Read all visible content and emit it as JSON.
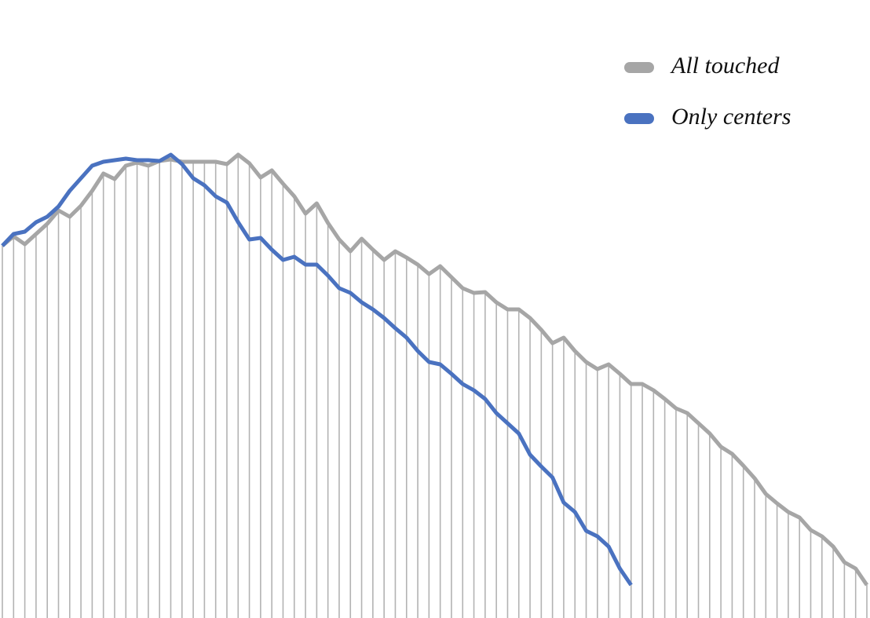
{
  "chart_data": {
    "type": "line",
    "x": [
      0,
      1,
      2,
      3,
      4,
      5,
      6,
      7,
      8,
      9,
      10,
      11,
      12,
      13,
      14,
      15,
      16,
      17,
      18,
      19,
      20,
      21,
      22,
      23,
      24,
      25,
      26,
      27,
      28,
      29,
      30,
      31,
      32,
      33,
      34,
      35,
      36,
      37,
      38,
      39,
      40,
      41,
      42,
      43,
      44,
      45,
      46,
      47,
      48,
      49,
      50,
      51,
      52,
      53,
      54,
      55,
      56,
      57,
      58,
      59,
      60,
      61,
      62,
      63,
      64,
      65,
      66,
      67,
      68,
      69,
      70,
      71,
      72,
      73,
      74,
      75,
      76,
      77
    ],
    "xlim": [
      0,
      77
    ],
    "ylim": [
      0,
      787
    ],
    "legend": "upper right",
    "drop_lines": true,
    "drop_line_color": "#b3b3b3",
    "series": [
      {
        "name": "All touched",
        "color": "#a6a6a6",
        "values": [
          474,
          486,
          476,
          489,
          502,
          519,
          511,
          525,
          544,
          566,
          559,
          576,
          580,
          576,
          582,
          584,
          581,
          581,
          581,
          581,
          578,
          590,
          579,
          561,
          570,
          553,
          537,
          515,
          528,
          503,
          482,
          467,
          483,
          469,
          456,
          467,
          459,
          450,
          438,
          448,
          434,
          420,
          414,
          415,
          402,
          393,
          393,
          382,
          367,
          350,
          357,
          340,
          326,
          317,
          323,
          311,
          298,
          298,
          290,
          279,
          267,
          261,
          248,
          235,
          218,
          209,
          194,
          178,
          158,
          146,
          135,
          128,
          112,
          104,
          91,
          71,
          63,
          42
        ]
      },
      {
        "name": "Only centers",
        "color": "#4a72c0",
        "values": [
          474,
          489,
          492,
          504,
          511,
          524,
          544,
          560,
          576,
          581,
          583,
          585,
          583,
          583,
          582,
          590,
          578,
          560,
          551,
          537,
          529,
          504,
          482,
          484,
          469,
          456,
          460,
          450,
          450,
          436,
          420,
          414,
          402,
          393,
          382,
          369,
          357,
          340,
          326,
          323,
          311,
          298,
          290,
          279,
          261,
          248,
          235,
          208,
          193,
          179,
          147,
          135,
          111,
          104,
          91,
          63,
          42,
          null,
          null,
          null,
          null,
          null,
          null,
          null,
          null,
          null,
          null,
          null,
          null,
          null,
          null,
          null,
          null,
          null,
          null,
          null,
          null,
          null
        ]
      }
    ]
  }
}
